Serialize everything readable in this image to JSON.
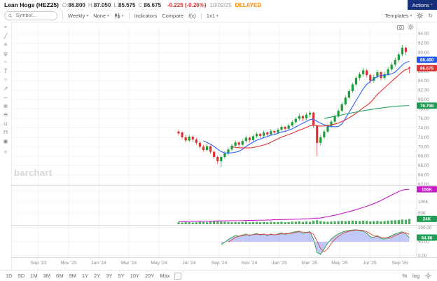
{
  "header": {
    "symbol": "Lean Hogs (HEZ25)",
    "ohlc": [
      {
        "label": "O:",
        "value": "86.800"
      },
      {
        "label": "H:",
        "value": "87.050"
      },
      {
        "label": "L:",
        "value": "85.575"
      },
      {
        "label": "C:",
        "value": "86.675"
      }
    ],
    "change": "-0.225 (-0.26%)",
    "date": "10/02/25",
    "delayed": "DELAYED",
    "actions_label": "Actions"
  },
  "toolbar": {
    "search_placeholder": "Symbol...",
    "period_label": "Weekly",
    "tools_label": "None",
    "indicators_label": "Indicators",
    "compare_label": "Compare",
    "fx_label": "f(x)",
    "layout_label": "1x1",
    "templates_label": "Templates"
  },
  "left_toolbar": {
    "collapse": "«",
    "tools": [
      {
        "name": "cursor",
        "glyph": "+"
      },
      {
        "name": "trend-line",
        "glyph": "╱"
      },
      {
        "name": "fibonacci",
        "glyph": "≡"
      },
      {
        "name": "pitchfork",
        "glyph": "ψ"
      },
      {
        "name": "brush",
        "glyph": "~"
      },
      {
        "name": "text",
        "glyph": "T"
      },
      {
        "name": "shapes",
        "glyph": "○"
      },
      {
        "name": "arrow",
        "glyph": "↗"
      },
      {
        "name": "measure",
        "glyph": "↔"
      },
      {
        "name": "zoom-in",
        "glyph": "⊕"
      },
      {
        "name": "zoom-out",
        "glyph": "⊖"
      },
      {
        "name": "magnet",
        "glyph": "∪"
      },
      {
        "name": "lock",
        "glyph": "⊓"
      },
      {
        "name": "eye",
        "glyph": "◉"
      }
    ]
  },
  "watermark": "barchart",
  "bottom_bar": {
    "ranges": [
      "1D",
      "5D",
      "1M",
      "3M",
      "6M",
      "9M",
      "1Y",
      "2Y",
      "3Y",
      "5Y",
      "10Y",
      "20Y",
      "Max"
    ],
    "percent_label": "%",
    "log_label": "log"
  },
  "chart_data": {
    "type": "candlestick",
    "symbol": "HEZ25",
    "interval": "Weekly",
    "price_axis": {
      "min": 62,
      "max": 94,
      "ticks": [
        "94.00",
        "92.00",
        "90.00",
        "88.00",
        "86.00",
        "84.00",
        "82.00",
        "80.00",
        "78.00",
        "76.00",
        "74.00",
        "72.00",
        "70.00",
        "68.00",
        "66.00",
        "64.00",
        "62.00"
      ]
    },
    "oi_axis_ticks": [
      "150K",
      "100K",
      "50K"
    ],
    "osc_axis_ticks": [
      "100.00",
      "50.00",
      "0.00"
    ],
    "date_labels": [
      "Sep '23",
      "Nov '23",
      "Jan '24",
      "Mar '24",
      "May '24",
      "Jul '24",
      "Sep '24",
      "Nov '24",
      "Jan '25",
      "Mar '25",
      "May '25",
      "Jul '25",
      "Sep '25"
    ],
    "candles": [
      [
        73.2,
        73.6,
        72.3,
        72.8
      ],
      [
        73.0,
        73.3,
        71.6,
        72.0
      ],
      [
        72.0,
        72.4,
        70.9,
        71.3
      ],
      [
        71.3,
        72.5,
        71.0,
        72.1
      ],
      [
        72.1,
        72.4,
        71.0,
        71.5
      ],
      [
        71.5,
        71.9,
        70.4,
        70.8
      ],
      [
        70.8,
        71.2,
        69.6,
        70.0
      ],
      [
        70.0,
        70.4,
        68.9,
        69.3
      ],
      [
        69.3,
        70.5,
        69.0,
        70.1
      ],
      [
        70.1,
        70.3,
        68.5,
        68.9
      ],
      [
        68.9,
        69.2,
        67.4,
        67.8
      ],
      [
        67.8,
        68.1,
        66.3,
        66.9
      ],
      [
        66.9,
        68.2,
        65.6,
        67.8
      ],
      [
        67.8,
        69.0,
        67.4,
        68.6
      ],
      [
        68.6,
        69.8,
        68.2,
        69.4
      ],
      [
        69.4,
        70.6,
        69.0,
        70.2
      ],
      [
        70.2,
        71.3,
        69.8,
        70.9
      ],
      [
        70.9,
        71.1,
        69.9,
        70.4
      ],
      [
        70.4,
        71.6,
        70.1,
        71.2
      ],
      [
        71.2,
        72.3,
        70.8,
        71.9
      ],
      [
        71.9,
        72.1,
        70.9,
        71.4
      ],
      [
        71.4,
        72.6,
        71.1,
        72.2
      ],
      [
        72.2,
        73.1,
        71.8,
        72.7
      ],
      [
        72.7,
        72.9,
        71.8,
        72.3
      ],
      [
        72.3,
        73.4,
        72.0,
        73.0
      ],
      [
        73.0,
        73.2,
        72.1,
        72.6
      ],
      [
        72.6,
        73.7,
        72.3,
        73.3
      ],
      [
        73.3,
        73.5,
        72.5,
        73.0
      ],
      [
        73.0,
        74.0,
        72.7,
        73.6
      ],
      [
        73.6,
        74.6,
        73.2,
        74.2
      ],
      [
        74.2,
        74.4,
        73.3,
        73.8
      ],
      [
        73.8,
        74.9,
        73.5,
        74.5
      ],
      [
        74.5,
        75.6,
        74.2,
        75.2
      ],
      [
        75.2,
        76.3,
        74.9,
        75.9
      ],
      [
        75.9,
        77.0,
        75.5,
        76.5
      ],
      [
        76.5,
        76.7,
        75.4,
        76.0
      ],
      [
        76.0,
        77.2,
        75.7,
        76.8
      ],
      [
        76.8,
        77.6,
        76.3,
        77.2
      ],
      [
        77.2,
        77.4,
        74.0,
        74.5
      ],
      [
        74.5,
        74.7,
        68.0,
        70.8
      ],
      [
        70.8,
        72.5,
        70.3,
        72.0
      ],
      [
        72.0,
        73.6,
        71.6,
        73.2
      ],
      [
        73.2,
        74.8,
        72.9,
        74.4
      ],
      [
        74.4,
        75.7,
        74.0,
        75.3
      ],
      [
        75.3,
        76.8,
        75.0,
        76.4
      ],
      [
        76.4,
        78.0,
        76.1,
        77.6
      ],
      [
        77.6,
        79.4,
        77.3,
        79.0
      ],
      [
        79.0,
        80.8,
        78.7,
        80.4
      ],
      [
        80.4,
        82.2,
        80.1,
        81.8
      ],
      [
        81.8,
        83.6,
        81.4,
        83.2
      ],
      [
        83.2,
        85.0,
        82.9,
        84.6
      ],
      [
        84.6,
        85.8,
        84.1,
        85.4
      ],
      [
        85.4,
        86.7,
        84.9,
        86.2
      ],
      [
        86.2,
        86.5,
        84.7,
        85.2
      ],
      [
        85.2,
        85.5,
        83.5,
        84.0
      ],
      [
        84.0,
        85.3,
        83.6,
        84.8
      ],
      [
        84.8,
        86.3,
        84.4,
        85.8
      ],
      [
        85.8,
        86.0,
        84.1,
        84.6
      ],
      [
        84.6,
        85.9,
        84.2,
        85.4
      ],
      [
        85.4,
        86.9,
        85.0,
        86.4
      ],
      [
        86.4,
        87.9,
        86.0,
        87.4
      ],
      [
        87.4,
        88.9,
        87.0,
        88.4
      ],
      [
        88.4,
        90.1,
        88.0,
        89.6
      ],
      [
        89.6,
        91.6,
        89.2,
        91.0
      ],
      [
        91.0,
        91.3,
        89.4,
        90.1
      ],
      [
        86.8,
        87.05,
        85.575,
        86.675
      ]
    ],
    "volume": [
      9,
      8,
      10,
      9,
      8,
      9,
      11,
      10,
      9,
      12,
      13,
      14,
      12,
      11,
      10,
      9,
      10,
      9,
      10,
      11,
      9,
      10,
      11,
      9,
      10,
      9,
      11,
      10,
      10,
      11,
      9,
      10,
      12,
      11,
      13,
      10,
      12,
      11,
      16,
      18,
      14,
      12,
      11,
      12,
      13,
      14,
      15,
      14,
      15,
      16,
      15,
      14,
      16,
      15,
      13,
      14,
      15,
      13,
      14,
      16,
      17,
      18,
      19,
      21,
      20,
      24
    ],
    "open_interest": [
      12,
      12,
      12,
      13,
      13,
      13,
      13,
      14,
      14,
      14,
      14,
      15,
      15,
      15,
      15,
      16,
      16,
      16,
      16,
      17,
      17,
      17,
      18,
      18,
      18,
      19,
      19,
      20,
      20,
      21,
      21,
      22,
      22,
      23,
      23,
      24,
      24,
      25,
      26,
      27,
      28,
      31,
      34,
      37,
      40,
      44,
      48,
      52,
      56,
      60,
      65,
      70,
      75,
      80,
      86,
      92,
      99,
      106,
      114,
      122,
      130,
      138,
      146,
      152,
      155,
      156
    ],
    "oscillator": {
      "start_index": 12,
      "values": [
        40,
        48,
        58,
        66,
        72,
        70,
        74,
        78,
        72,
        76,
        80,
        74,
        78,
        72,
        78,
        74,
        78,
        82,
        76,
        80,
        84,
        86,
        88,
        80,
        84,
        86,
        60,
        12,
        5,
        25,
        45,
        60,
        70,
        78,
        84,
        88,
        90,
        92,
        93,
        90,
        88,
        80,
        68,
        66,
        72,
        62,
        60,
        66,
        72,
        78,
        82,
        86,
        78,
        64.86
      ]
    },
    "moving_averages": [
      {
        "name": "ma-fast",
        "color": "#2962ff",
        "period": 8
      },
      {
        "name": "ma-slow",
        "color": "#e03131",
        "period": 16
      },
      {
        "name": "ma-long",
        "color": "#21a05f",
        "start_index": 41,
        "values": [
          76.0,
          76.15,
          76.3,
          76.45,
          76.6,
          76.75,
          76.9,
          77.05,
          77.2,
          77.35,
          77.5,
          77.62,
          77.74,
          77.86,
          77.98,
          78.1,
          78.2,
          78.3,
          78.4,
          78.48,
          78.56,
          78.62,
          78.66,
          78.69,
          78.708
        ]
      }
    ],
    "badges": [
      {
        "value": "88.460",
        "color": "#2157f3",
        "panel": "price"
      },
      {
        "value": "86.675",
        "color": "#e03131",
        "panel": "price"
      },
      {
        "value": "78.708",
        "color": "#1f9d55",
        "panel": "price"
      },
      {
        "value": "156K",
        "color": "#c81cc8",
        "panel": "oi"
      },
      {
        "value": "24K",
        "color": "#1f9d55",
        "panel": "volume"
      },
      {
        "value": "64.86",
        "color": "#1f9d55",
        "panel": "osc"
      }
    ]
  }
}
